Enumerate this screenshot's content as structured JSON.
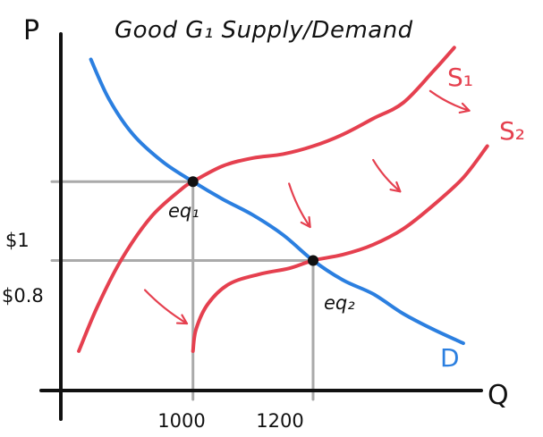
{
  "chart_data": {
    "type": "line",
    "title": "Good G₁ Supply/Demand",
    "xlabel": "Q",
    "ylabel": "P",
    "x_ticks": [
      {
        "value": 1000,
        "label": "1000"
      },
      {
        "value": 1200,
        "label": "1200"
      }
    ],
    "y_ticks": [
      {
        "value": 1.0,
        "label": "$1"
      },
      {
        "value": 0.8,
        "label": "$0.8"
      }
    ],
    "xlim": [
      780,
      1480
    ],
    "ylim": [
      0.47,
      1.42
    ],
    "grid": false,
    "series": [
      {
        "name": "D",
        "color": "#2b7fe0",
        "x": [
          830,
          860,
          900,
          950,
          1000,
          1050,
          1100,
          1150,
          1200,
          1250,
          1300,
          1350,
          1400,
          1450
        ],
        "y": [
          1.31,
          1.21,
          1.12,
          1.05,
          1.0,
          0.955,
          0.915,
          0.865,
          0.8,
          0.75,
          0.715,
          0.665,
          0.625,
          0.59
        ]
      },
      {
        "name": "S₁",
        "color": "#e5404f",
        "x": [
          810,
          840,
          880,
          930,
          980,
          1000,
          1050,
          1100,
          1150,
          1200,
          1250,
          1300,
          1350,
          1400,
          1435
        ],
        "y": [
          0.57,
          0.68,
          0.8,
          0.91,
          0.98,
          1.0,
          1.04,
          1.06,
          1.07,
          1.09,
          1.12,
          1.16,
          1.2,
          1.28,
          1.34
        ]
      },
      {
        "name": "S₂",
        "color": "#e5404f",
        "x": [
          1000,
          1005,
          1025,
          1060,
          1110,
          1160,
          1200,
          1250,
          1300,
          1350,
          1400,
          1450,
          1490
        ],
        "y": [
          0.57,
          0.625,
          0.69,
          0.74,
          0.765,
          0.78,
          0.8,
          0.815,
          0.84,
          0.88,
          0.94,
          1.01,
          1.09
        ]
      }
    ],
    "points": [
      {
        "name": "eq₁",
        "x": 1000,
        "y": 1.0
      },
      {
        "name": "eq₂",
        "x": 1200,
        "y": 0.8
      }
    ],
    "shift_arrows": [
      {
        "from": [
          920,
          0.725
        ],
        "to": [
          990,
          0.64
        ]
      },
      {
        "from": [
          1160,
          0.995
        ],
        "to": [
          1195,
          0.885
        ]
      },
      {
        "from": [
          1300,
          1.055
        ],
        "to": [
          1345,
          0.975
        ]
      },
      {
        "from": [
          1395,
          1.23
        ],
        "to": [
          1460,
          1.18
        ]
      }
    ],
    "colors": {
      "axis": "#111111",
      "guide": "#aaaaaa",
      "demand": "#2b7fe0",
      "supply": "#e5404f",
      "point": "#111111"
    }
  }
}
